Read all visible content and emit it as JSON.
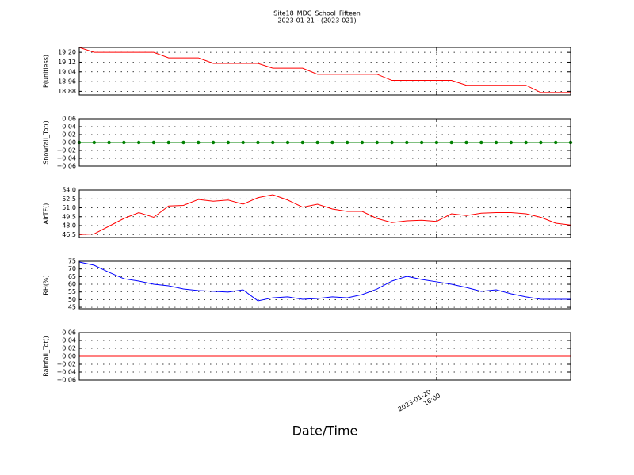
{
  "chart_data": [
    {
      "type": "line",
      "title": "Site18_MDC_School_Fifteen",
      "subtitle": "2023-01-21 - (2023-021)",
      "ylabel": "P(unitless)",
      "ylim": [
        18.85,
        19.24
      ],
      "yticks": [
        {
          "value": 18.88,
          "label": "18.88"
        },
        {
          "value": 18.96,
          "label": "18.96"
        },
        {
          "value": 19.04,
          "label": "19.04"
        },
        {
          "value": 19.12,
          "label": "19.12"
        },
        {
          "value": 19.2,
          "label": "19.20"
        }
      ],
      "grid": true,
      "color": "#ff0000",
      "markers": false,
      "values": [
        19.24,
        19.2,
        19.2,
        19.2,
        19.2,
        19.2,
        19.155,
        19.155,
        19.155,
        19.11,
        19.11,
        19.11,
        19.11,
        19.07,
        19.07,
        19.07,
        19.02,
        19.02,
        19.02,
        19.02,
        19.02,
        18.97,
        18.97,
        18.97,
        18.97,
        18.97,
        18.93,
        18.93,
        18.93,
        18.93,
        18.93,
        18.87,
        18.87,
        18.87
      ]
    },
    {
      "type": "line",
      "ylabel": "Snowfall_Tot()",
      "ylim": [
        -0.06,
        0.06
      ],
      "yticks": [
        {
          "value": -0.06,
          "label": "−0.06"
        },
        {
          "value": -0.04,
          "label": "−0.04"
        },
        {
          "value": -0.02,
          "label": "−0.02"
        },
        {
          "value": 0,
          "label": "0.00"
        },
        {
          "value": 0.02,
          "label": "0.02"
        },
        {
          "value": 0.04,
          "label": "0.04"
        },
        {
          "value": 0.06,
          "label": "0.06"
        }
      ],
      "grid": true,
      "color": "#008000",
      "markers": true,
      "values": [
        0,
        0,
        0,
        0,
        0,
        0,
        0,
        0,
        0,
        0,
        0,
        0,
        0,
        0,
        0,
        0,
        0,
        0,
        0,
        0,
        0,
        0,
        0,
        0,
        0,
        0,
        0,
        0,
        0,
        0,
        0,
        0,
        0,
        0
      ]
    },
    {
      "type": "line",
      "ylabel": "AirTF()",
      "ylim": [
        46,
        54
      ],
      "yticks": [
        46.5,
        {
          "value": 48,
          "label": "48.0"
        },
        49.5,
        {
          "value": 51,
          "label": "51.0"
        },
        52.5,
        {
          "value": 54,
          "label": "54.0"
        }
      ],
      "grid": true,
      "color": "#ff0000",
      "markers": false,
      "values": [
        46.5,
        46.6,
        47.9,
        49.2,
        50.2,
        49.4,
        51.3,
        51.4,
        52.4,
        52.1,
        52.3,
        51.6,
        52.7,
        53.2,
        52.3,
        51.1,
        51.6,
        50.8,
        50.4,
        50.4,
        49.2,
        48.5,
        48.8,
        48.9,
        48.7,
        50.0,
        49.7,
        50.1,
        50.2,
        50.2,
        50.0,
        49.4,
        48.4,
        48.1
      ]
    },
    {
      "type": "line",
      "ylabel": "RH(%)",
      "ylim": [
        44,
        75
      ],
      "yticks": [
        45,
        50,
        55,
        60,
        65,
        70,
        75
      ],
      "grid": true,
      "color": "#0000ff",
      "markers": false,
      "values": [
        74.5,
        72.4,
        67.8,
        63.6,
        62.1,
        60.0,
        59.0,
        56.9,
        55.9,
        55.4,
        54.9,
        56.4,
        49.2,
        51.2,
        51.8,
        50.2,
        50.7,
        51.8,
        51.2,
        53.3,
        56.9,
        62.1,
        65.2,
        63.1,
        61.6,
        60.0,
        57.9,
        55.4,
        56.4,
        53.8,
        51.8,
        50.2,
        50.2,
        50.2
      ]
    },
    {
      "type": "line",
      "ylabel": "Rainfall_Tot()",
      "xlabel": "Date/Time",
      "ylim": [
        -0.06,
        0.06
      ],
      "yticks": [
        {
          "value": -0.06,
          "label": "−0.06"
        },
        {
          "value": -0.04,
          "label": "−0.04"
        },
        {
          "value": -0.02,
          "label": "−0.02"
        },
        {
          "value": 0,
          "label": "0.00"
        },
        {
          "value": 0.02,
          "label": "0.02"
        },
        {
          "value": 0.04,
          "label": "0.04"
        },
        {
          "value": 0.06,
          "label": "0.06"
        }
      ],
      "grid": true,
      "color": "#ff0000",
      "markers": false,
      "categories": [
        null,
        null,
        null,
        null,
        null,
        null,
        null,
        null,
        null,
        null,
        null,
        null,
        null,
        null,
        null,
        null,
        null,
        null,
        null,
        null,
        null,
        null,
        null,
        null,
        "2023-01-20 16:00",
        null,
        null,
        null,
        null,
        null,
        null,
        null,
        null,
        null
      ],
      "values": [
        0,
        0,
        0,
        0,
        0,
        0,
        0,
        0,
        0,
        0,
        0,
        0,
        0,
        0,
        0,
        0,
        0,
        0,
        0,
        0,
        0,
        0,
        0,
        0,
        0,
        0,
        0,
        0,
        0,
        0,
        0,
        0,
        0,
        0
      ]
    }
  ]
}
